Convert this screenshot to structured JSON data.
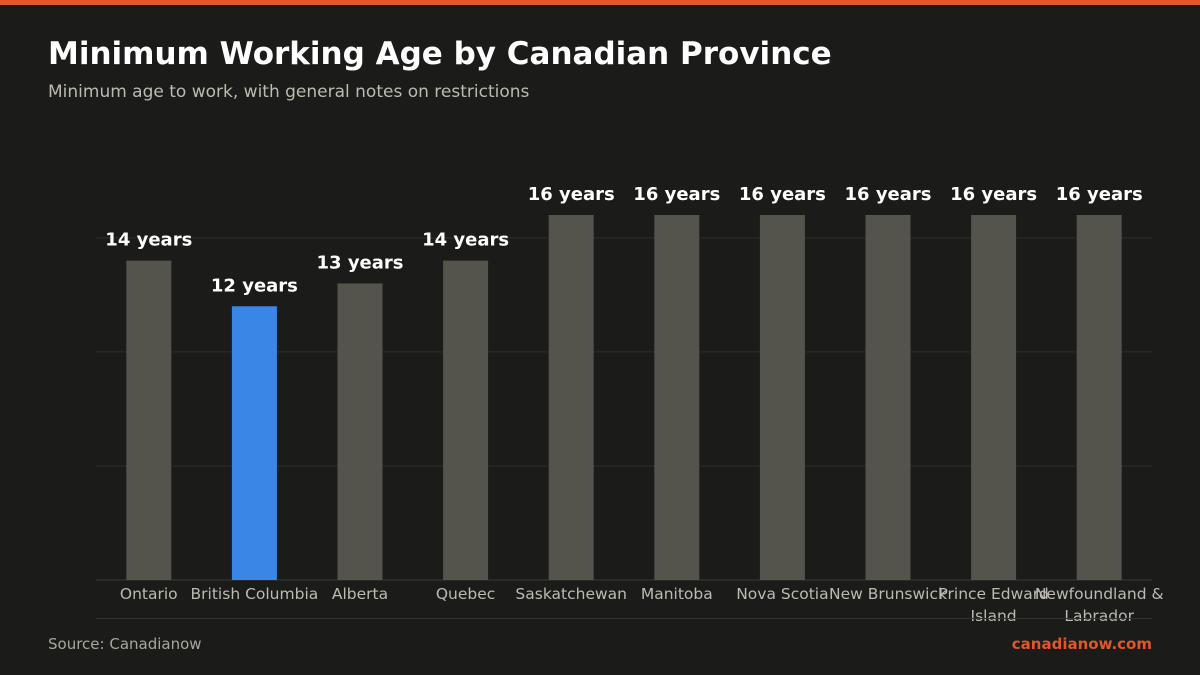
{
  "header": {
    "title": "Minimum Working Age by Canadian Province",
    "subtitle": "Minimum age to work, with general notes on restrictions"
  },
  "footer": {
    "source": "Source: Canadianow",
    "brand": "canadianow.com"
  },
  "colors": {
    "background": "#1b1b19",
    "accent": "#e0572a",
    "bar_default": "#54534c",
    "bar_highlight": "#3a86e6"
  },
  "chart_data": {
    "type": "bar",
    "categories": [
      "Ontario",
      "British Columbia",
      "Alberta",
      "Quebec",
      "Saskatchewan",
      "Manitoba",
      "Nova Scotia",
      "New Brunswick",
      "Prince Edward Island",
      "Newfoundland & Labrador"
    ],
    "values": [
      14,
      12,
      13,
      14,
      16,
      16,
      16,
      16,
      16,
      16
    ],
    "data_labels": [
      "14 years",
      "12 years",
      "13 years",
      "14 years",
      "16 years",
      "16 years",
      "16 years",
      "16 years",
      "16 years",
      "16 years"
    ],
    "highlight_category": "British Columbia",
    "title": "Minimum Working Age by Canadian Province",
    "subtitle": "Minimum age to work, with general notes on restrictions",
    "xlabel": "",
    "ylabel": "",
    "ylim": [
      0,
      16
    ],
    "gridlines": [
      0,
      5,
      10,
      15
    ],
    "grid": true,
    "legend": "none"
  }
}
